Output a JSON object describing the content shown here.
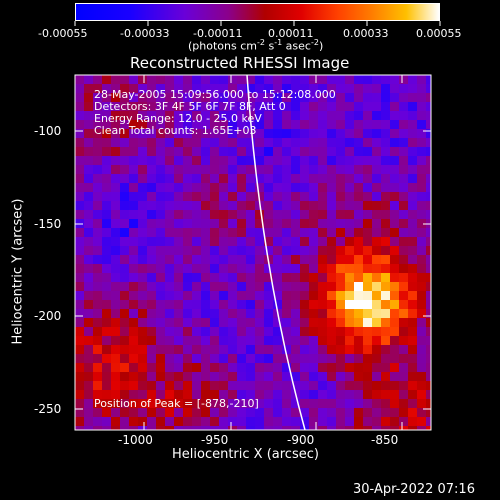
{
  "colorbar": {
    "ticks": [
      "-0.00055",
      "-0.00033",
      "-0.00011",
      "0.00011",
      "0.00033",
      "0.00055"
    ],
    "units_main": "(photons cm",
    "units_sup1": "-2",
    "units_mid1": " s",
    "units_sup2": "-1",
    "units_mid2": " asec",
    "units_sup3": "-2",
    "units_end": ")"
  },
  "plot": {
    "title": "Reconstructed RHESSI Image",
    "info_lines": [
      "28-May-2005 15:09:56.000 to 15:12:08.000",
      "Detectors: 3F 4F 5F 6F 7F 8F, Att 0",
      "Energy Range: 12.0 - 25.0 keV",
      "Clean     Total counts: 1.65E+03"
    ],
    "peak_label": "Position of Peak = [-878,-210]",
    "xlabel": "Heliocentric X (arcsec)",
    "ylabel": "Heliocentric Y (arcsec)",
    "xticks": [
      "-1000",
      "-950",
      "-900",
      "-850"
    ],
    "yticks": [
      "-100",
      "-150",
      "-200",
      "-250"
    ]
  },
  "footer": {
    "timestamp": "30-Apr-2022 07:16"
  },
  "colors": {
    "background": "#000000",
    "text": "#ffffff",
    "limb": "#ffffff"
  },
  "icons": {
    "colorbar": "color-scale-bar",
    "image": "heatmap-image"
  }
}
